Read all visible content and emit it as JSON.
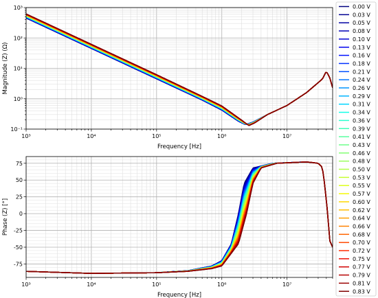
{
  "chart_data": [
    {
      "type": "line",
      "title": "",
      "xlabel": "Frequency [Hz]",
      "ylabel": "Magnitude (Z) (Ω)",
      "xscale": "log",
      "yscale": "log",
      "xlim": [
        1000,
        50000000
      ],
      "ylim": [
        0.1,
        1000
      ],
      "grid": true,
      "x_tick_labels": [
        "10³",
        "10⁴",
        "10⁵",
        "10⁶",
        "10⁷"
      ],
      "y_tick_labels": [
        "10⁻¹",
        "10⁰",
        "10¹",
        "10²",
        "10³"
      ],
      "curve_points": {
        "first_series": [
          [
            1000,
            450
          ],
          [
            10000,
            45
          ],
          [
            100000,
            4.5
          ],
          [
            500000,
            0.9
          ],
          [
            1000000,
            0.42
          ],
          [
            1800000,
            0.18
          ],
          [
            2300000,
            0.14
          ],
          [
            3000000,
            0.17
          ],
          [
            5000000,
            0.3
          ],
          [
            10000000,
            0.6
          ],
          [
            20000000,
            1.6
          ],
          [
            35000000,
            4.5
          ],
          [
            40000000,
            8
          ],
          [
            45000000,
            5
          ],
          [
            50000000,
            2.3
          ]
        ],
        "last_series": [
          [
            1000,
            620
          ],
          [
            10000,
            62
          ],
          [
            100000,
            6.2
          ],
          [
            500000,
            1.2
          ],
          [
            1000000,
            0.58
          ],
          [
            2000000,
            0.2
          ],
          [
            2600000,
            0.13
          ],
          [
            3200000,
            0.16
          ],
          [
            5000000,
            0.3
          ],
          [
            10000000,
            0.6
          ],
          [
            20000000,
            1.6
          ],
          [
            35000000,
            4.5
          ],
          [
            40000000,
            8
          ],
          [
            45000000,
            5
          ],
          [
            50000000,
            2.3
          ]
        ]
      }
    },
    {
      "type": "line",
      "title": "",
      "xlabel": "Frequency [Hz]",
      "ylabel": "Phase (Z) [°]",
      "xscale": "log",
      "yscale": "linear",
      "xlim": [
        1000,
        50000000
      ],
      "ylim": [
        -95,
        85
      ],
      "grid": true,
      "x_tick_labels": [
        "10³",
        "10⁴",
        "10⁵",
        "10⁶",
        "10⁷"
      ],
      "y_ticks": [
        -75,
        -50,
        -25,
        0,
        25,
        50,
        75
      ],
      "curve_points": {
        "first_series": [
          [
            1000,
            -86
          ],
          [
            10000,
            -89
          ],
          [
            100000,
            -88
          ],
          [
            300000,
            -85
          ],
          [
            700000,
            -78
          ],
          [
            1000000,
            -70
          ],
          [
            1400000,
            -45
          ],
          [
            1800000,
            0
          ],
          [
            2200000,
            45
          ],
          [
            3000000,
            68
          ],
          [
            6000000,
            75
          ],
          [
            20000000,
            77
          ],
          [
            30000000,
            75
          ],
          [
            34000000,
            70
          ],
          [
            36000000,
            60
          ],
          [
            38000000,
            40
          ],
          [
            42000000,
            0
          ],
          [
            45000000,
            -40
          ],
          [
            50000000,
            -50
          ]
        ],
        "last_series": [
          [
            1000,
            -86
          ],
          [
            10000,
            -89
          ],
          [
            100000,
            -88
          ],
          [
            300000,
            -86
          ],
          [
            700000,
            -82
          ],
          [
            1000000,
            -78
          ],
          [
            1800000,
            -45
          ],
          [
            2400000,
            0
          ],
          [
            3000000,
            45
          ],
          [
            4000000,
            68
          ],
          [
            7000000,
            75
          ],
          [
            20000000,
            77
          ],
          [
            30000000,
            75
          ],
          [
            34000000,
            70
          ],
          [
            36000000,
            60
          ],
          [
            38000000,
            40
          ],
          [
            42000000,
            0
          ],
          [
            45000000,
            -40
          ],
          [
            50000000,
            -50
          ]
        ]
      }
    }
  ],
  "legend": {
    "placement": "right",
    "items": [
      {
        "label": "0.00 V",
        "color": "#00007f"
      },
      {
        "label": "0.03 V",
        "color": "#000091"
      },
      {
        "label": "0.05 V",
        "color": "#0000a3"
      },
      {
        "label": "0.08 V",
        "color": "#0000b6"
      },
      {
        "label": "0.10 V",
        "color": "#0000d1"
      },
      {
        "label": "0.13 V",
        "color": "#0000ed"
      },
      {
        "label": "0.16 V",
        "color": "#0010ff"
      },
      {
        "label": "0.18 V",
        "color": "#0030ff"
      },
      {
        "label": "0.21 V",
        "color": "#0050ff"
      },
      {
        "label": "0.24 V",
        "color": "#0074ff"
      },
      {
        "label": "0.26 V",
        "color": "#0094ff"
      },
      {
        "label": "0.29 V",
        "color": "#00b4ff"
      },
      {
        "label": "0.31 V",
        "color": "#00d4ff"
      },
      {
        "label": "0.34 V",
        "color": "#10ffe7"
      },
      {
        "label": "0.36 V",
        "color": "#29ffce"
      },
      {
        "label": "0.39 V",
        "color": "#3fffb7"
      },
      {
        "label": "0.41 V",
        "color": "#57ff9f"
      },
      {
        "label": "0.43 V",
        "color": "#6dff8a"
      },
      {
        "label": "0.46 V",
        "color": "#83ff73"
      },
      {
        "label": "0.48 V",
        "color": "#9aff5d"
      },
      {
        "label": "0.50 V",
        "color": "#b1ff46"
      },
      {
        "label": "0.53 V",
        "color": "#c6ff31"
      },
      {
        "label": "0.55 V",
        "color": "#ddff1a"
      },
      {
        "label": "0.57 V",
        "color": "#f4f802"
      },
      {
        "label": "0.60 V",
        "color": "#ffd700"
      },
      {
        "label": "0.62 V",
        "color": "#ffbc00"
      },
      {
        "label": "0.64 V",
        "color": "#ff9f00"
      },
      {
        "label": "0.66 V",
        "color": "#ff8200"
      },
      {
        "label": "0.68 V",
        "color": "#ff6400"
      },
      {
        "label": "0.70 V",
        "color": "#ff4800"
      },
      {
        "label": "0.72 V",
        "color": "#ff2b00"
      },
      {
        "label": "0.75 V",
        "color": "#ed0e00"
      },
      {
        "label": "0.77 V",
        "color": "#d10000"
      },
      {
        "label": "0.79 V",
        "color": "#b60000"
      },
      {
        "label": "0.81 V",
        "color": "#9a0000"
      },
      {
        "label": "0.83 V",
        "color": "#7f0000"
      }
    ]
  }
}
